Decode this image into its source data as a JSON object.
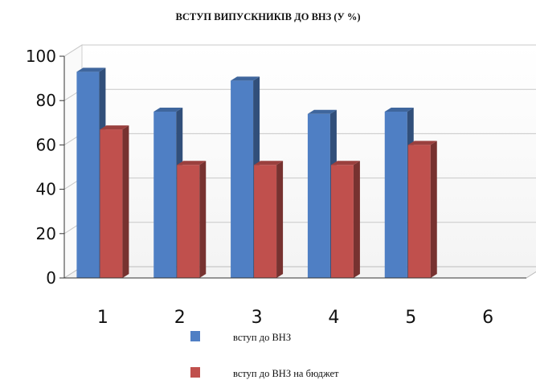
{
  "chart_data": {
    "type": "bar",
    "title": "ВСТУП ВИПУСКНИКІВ ДО ВНЗ (У %)",
    "xlabel": "",
    "ylabel": "",
    "categories": [
      "1",
      "2",
      "3",
      "4",
      "5",
      "6"
    ],
    "yticks": [
      "0",
      "20",
      "40",
      "60",
      "80",
      "100"
    ],
    "ylim": [
      0,
      100
    ],
    "grid": true,
    "three_d": true,
    "legend_position": "bottom",
    "series": [
      {
        "name": "вступ до ВНЗ",
        "values": [
          93,
          75,
          89,
          74,
          75,
          null
        ],
        "color": "#4f7fc4"
      },
      {
        "name": "вступ до ВНЗ на бюджет",
        "values": [
          67,
          51,
          51,
          51,
          60,
          null
        ],
        "color": "#c0504d"
      }
    ]
  }
}
